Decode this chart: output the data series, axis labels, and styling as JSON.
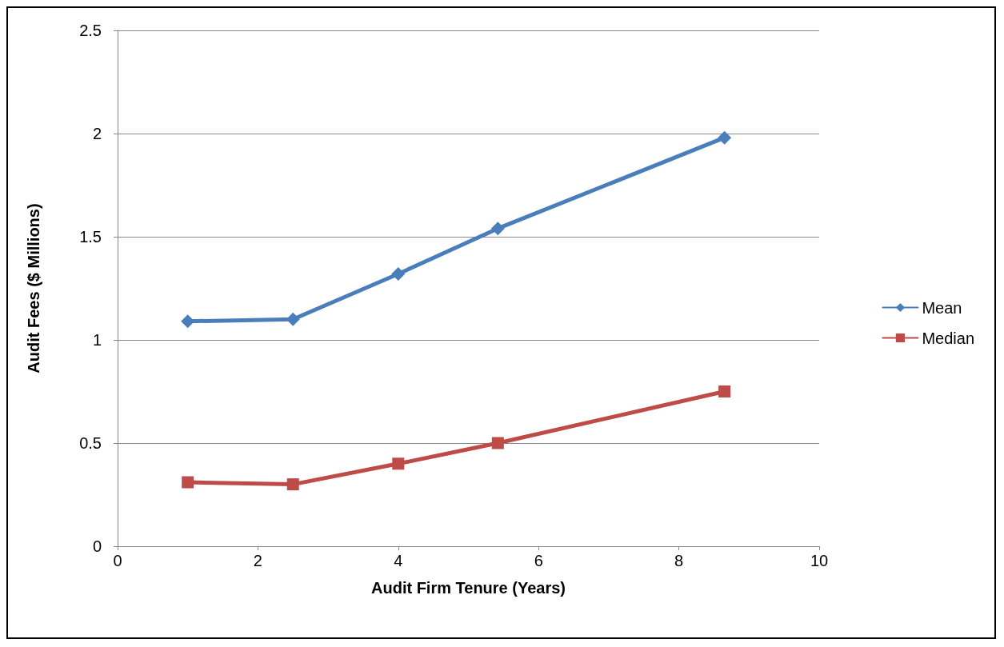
{
  "chart_data": {
    "type": "line",
    "xlabel": "Audit Firm Tenure (Years)",
    "ylabel": "Audit Fees ($ Millions)",
    "x": [
      1,
      2.5,
      4,
      5.42,
      8.65
    ],
    "series": [
      {
        "name": "Mean",
        "color": "#4a7ebb",
        "marker": "diamond",
        "values": [
          1.09,
          1.1,
          1.32,
          1.54,
          1.98
        ]
      },
      {
        "name": "Median",
        "color": "#be4b48",
        "marker": "square",
        "values": [
          0.31,
          0.3,
          0.4,
          0.5,
          0.75
        ]
      }
    ],
    "xlim": [
      0,
      10
    ],
    "xticks": [
      0,
      2,
      4,
      6,
      8,
      10
    ],
    "ylim": [
      0,
      2.5
    ],
    "yticks": [
      0,
      0.5,
      1,
      1.5,
      2,
      2.5
    ],
    "grid": "y",
    "legend": "right",
    "line_style": "solid"
  }
}
